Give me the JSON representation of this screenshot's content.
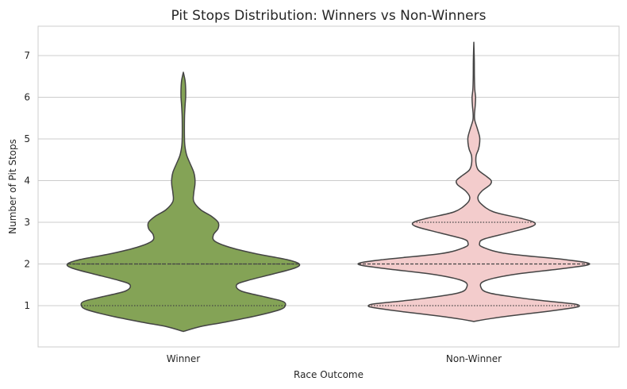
{
  "chart_data": {
    "type": "violin",
    "title": "Pit Stops Distribution: Winners vs Non-Winners",
    "xlabel": "Race Outcome",
    "ylabel": "Number of Pit Stops",
    "categories": [
      "Winner",
      "Non-Winner"
    ],
    "ylim": [
      0,
      7.7
    ],
    "yticks": [
      1,
      2,
      3,
      4,
      5,
      6,
      7
    ],
    "grid": true,
    "colors": {
      "Winner": "#84a356",
      "Non-Winner": "#f3cccc",
      "outline": "#444444",
      "grid": "#cccccc"
    },
    "violins": [
      {
        "category": "Winner",
        "range": [
          0.38,
          6.6
        ],
        "quartiles": [
          1.0,
          2.0,
          2.0
        ],
        "density_half_width": [
          [
            0.38,
            0.0
          ],
          [
            0.5,
            0.15
          ],
          [
            0.6,
            0.35
          ],
          [
            0.75,
            0.62
          ],
          [
            0.9,
            0.83
          ],
          [
            1.0,
            0.88
          ],
          [
            1.1,
            0.86
          ],
          [
            1.2,
            0.72
          ],
          [
            1.35,
            0.5
          ],
          [
            1.5,
            0.46
          ],
          [
            1.6,
            0.55
          ],
          [
            1.75,
            0.76
          ],
          [
            1.9,
            0.96
          ],
          [
            2.0,
            1.0
          ],
          [
            2.1,
            0.9
          ],
          [
            2.25,
            0.62
          ],
          [
            2.4,
            0.4
          ],
          [
            2.55,
            0.27
          ],
          [
            2.7,
            0.26
          ],
          [
            2.85,
            0.3
          ],
          [
            3.0,
            0.3
          ],
          [
            3.15,
            0.24
          ],
          [
            3.3,
            0.15
          ],
          [
            3.5,
            0.09
          ],
          [
            3.7,
            0.09
          ],
          [
            3.9,
            0.1
          ],
          [
            4.05,
            0.1
          ],
          [
            4.2,
            0.09
          ],
          [
            4.4,
            0.06
          ],
          [
            4.6,
            0.03
          ],
          [
            4.8,
            0.015
          ],
          [
            5.0,
            0.01
          ],
          [
            5.5,
            0.01
          ],
          [
            5.8,
            0.015
          ],
          [
            6.0,
            0.02
          ],
          [
            6.2,
            0.02
          ],
          [
            6.4,
            0.015
          ],
          [
            6.6,
            0.0
          ]
        ]
      },
      {
        "category": "Non-Winner",
        "range": [
          0.62,
          7.32
        ],
        "quartiles": [
          1.0,
          2.0,
          3.0
        ],
        "density_half_width": [
          [
            0.62,
            0.0
          ],
          [
            0.67,
            0.1
          ],
          [
            0.75,
            0.3
          ],
          [
            0.85,
            0.6
          ],
          [
            0.95,
            0.86
          ],
          [
            1.0,
            0.91
          ],
          [
            1.05,
            0.84
          ],
          [
            1.15,
            0.5
          ],
          [
            1.3,
            0.14
          ],
          [
            1.45,
            0.06
          ],
          [
            1.6,
            0.1
          ],
          [
            1.75,
            0.35
          ],
          [
            1.9,
            0.8
          ],
          [
            2.0,
            1.0
          ],
          [
            2.1,
            0.8
          ],
          [
            2.25,
            0.28
          ],
          [
            2.4,
            0.08
          ],
          [
            2.5,
            0.05
          ],
          [
            2.6,
            0.09
          ],
          [
            2.75,
            0.3
          ],
          [
            2.9,
            0.5
          ],
          [
            3.0,
            0.52
          ],
          [
            3.1,
            0.4
          ],
          [
            3.25,
            0.17
          ],
          [
            3.45,
            0.06
          ],
          [
            3.6,
            0.035
          ],
          [
            3.75,
            0.07
          ],
          [
            3.9,
            0.14
          ],
          [
            4.0,
            0.15
          ],
          [
            4.1,
            0.11
          ],
          [
            4.25,
            0.04
          ],
          [
            4.4,
            0.02
          ],
          [
            4.6,
            0.02
          ],
          [
            4.75,
            0.04
          ],
          [
            4.9,
            0.05
          ],
          [
            5.05,
            0.05
          ],
          [
            5.25,
            0.03
          ],
          [
            5.45,
            0.008
          ],
          [
            5.6,
            0.006
          ],
          [
            5.8,
            0.012
          ],
          [
            6.0,
            0.015
          ],
          [
            6.2,
            0.008
          ],
          [
            6.5,
            0.005
          ],
          [
            6.9,
            0.004
          ],
          [
            7.32,
            0.0
          ]
        ]
      }
    ]
  }
}
